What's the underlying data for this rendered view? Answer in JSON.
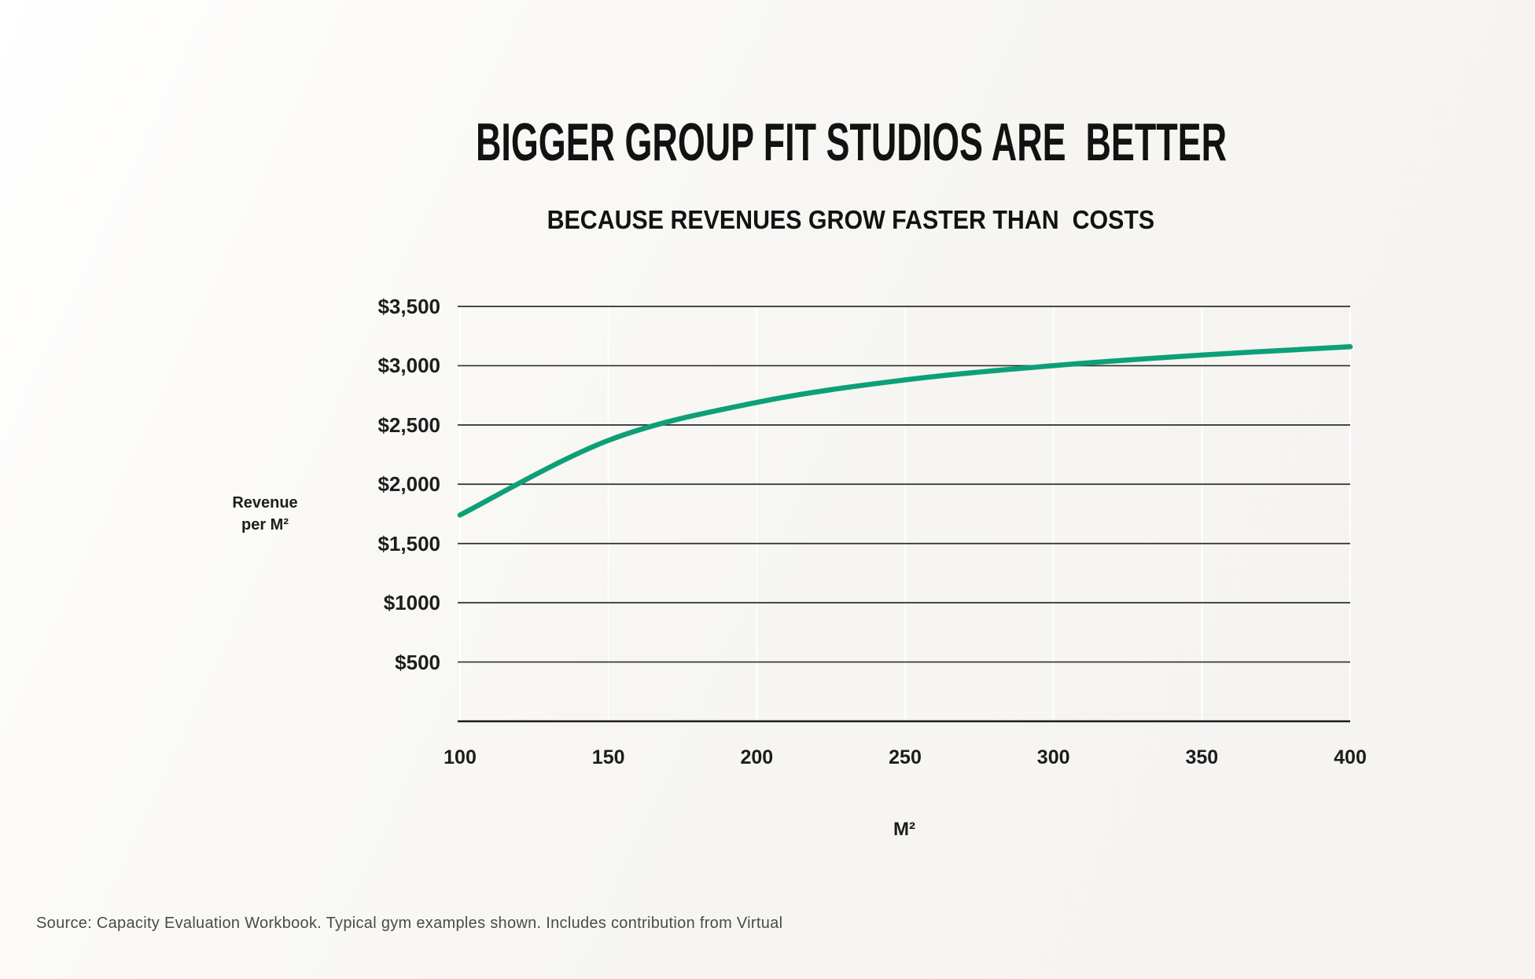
{
  "header": {
    "title": "BIGGER GROUP FIT STUDIOS ARE  BETTER",
    "subtitle": "BECAUSE REVENUES GROW FASTER THAN  COSTS"
  },
  "chart_data": {
    "type": "line",
    "title": "BIGGER GROUP FIT STUDIOS ARE BETTER",
    "subtitle": "BECAUSE REVENUES GROW FASTER THAN COSTS",
    "xlabel": "M²",
    "ylabel": "Revenue per M²",
    "ylabel_lines": [
      "Revenue",
      "per M²"
    ],
    "x": [
      100,
      150,
      200,
      250,
      300,
      350,
      400
    ],
    "y": [
      1740,
      2370,
      2690,
      2880,
      3000,
      3090,
      3160
    ],
    "series_name": "Revenue per M²",
    "line_color": "#0da078",
    "xlim": [
      100,
      400
    ],
    "ylim": [
      0,
      3500
    ],
    "xticks": [
      100,
      150,
      200,
      250,
      300,
      350,
      400
    ],
    "xtick_labels": [
      "100",
      "150",
      "200",
      "250",
      "300",
      "350",
      "400"
    ],
    "yticks": [
      3500,
      3000,
      2500,
      2000,
      1500,
      1000,
      500
    ],
    "ytick_labels": [
      "$3,500",
      "$3,000",
      "$2,500",
      "$2,000",
      "$1,500",
      "$1000",
      "$500"
    ],
    "grid": "horizontal dark lines, faint vertical lines at x ticks, legend none",
    "gridline_color": "#2e2e2e",
    "axis_line_color": "#1b1b1b"
  },
  "footer": {
    "source": "Source: Capacity Evaluation Workbook. Typical gym examples shown. Includes contribution from Virtual"
  }
}
